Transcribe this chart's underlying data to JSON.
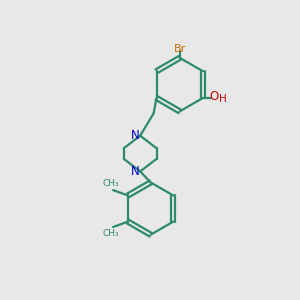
{
  "bg_color": "#e8e8e8",
  "bond_color": "#2d8a6e",
  "N_color": "#0000cc",
  "O_color": "#cc0000",
  "Br_color": "#cc6600",
  "H_color": "#cc0000",
  "line_width": 1.6,
  "figsize": [
    3.0,
    3.0
  ],
  "dpi": 100,
  "xlim": [
    0,
    10
  ],
  "ylim": [
    0,
    10
  ]
}
